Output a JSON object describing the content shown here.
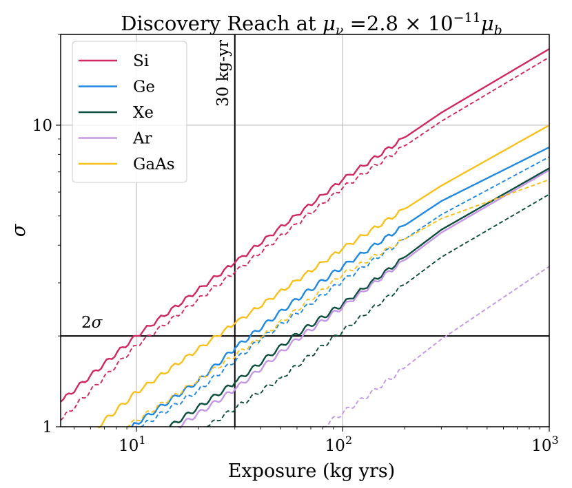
{
  "chart_data": {
    "type": "line",
    "title": "Discovery Reach at μ_ν =2.8 × 10^-11 μ_b",
    "title_parts": {
      "prefix": "Discovery Reach at ",
      "mu": "μ",
      "nu": "ν",
      "eq": " =2.8 × 10",
      "exp": "−11",
      "mu2": "μ",
      "b": "b"
    },
    "xlabel": "Exposure (kg yrs)",
    "ylabel": "σ",
    "xscale": "log",
    "yscale": "log",
    "xlim": [
      4.3,
      1000
    ],
    "ylim": [
      1,
      20
    ],
    "grid": true,
    "legend_position": "top-left",
    "x_ticks": [
      {
        "base": "10",
        "exp": "1",
        "value": 10
      },
      {
        "base": "10",
        "exp": "2",
        "value": 100
      },
      {
        "base": "10",
        "exp": "3",
        "value": 1000
      }
    ],
    "y_ticks": [
      {
        "label": "1",
        "value": 1
      },
      {
        "label": "10",
        "value": 10
      }
    ],
    "annotations": [
      {
        "label": "2σ",
        "kind": "hline",
        "value": 2
      },
      {
        "label": "30 kg-yr",
        "kind": "vline",
        "value": 30
      }
    ],
    "series": [
      {
        "name": "Si",
        "color": "#d0275f",
        "style": "solid",
        "points": [
          [
            4.3,
            1.21
          ],
          [
            10,
            2.0
          ],
          [
            30,
            3.5
          ],
          [
            100,
            6.6
          ],
          [
            300,
            11.0
          ],
          [
            1000,
            17.9
          ]
        ]
      },
      {
        "name": "Si",
        "color": "#d0275f",
        "style": "dashed",
        "in_legend": false,
        "points": [
          [
            4.3,
            1.05
          ],
          [
            10,
            1.86
          ],
          [
            30,
            3.25
          ],
          [
            100,
            6.2
          ],
          [
            300,
            10.3
          ],
          [
            1000,
            16.8
          ]
        ]
      },
      {
        "name": "Ge",
        "color": "#1f88e0",
        "style": "solid",
        "points": [
          [
            9.5,
            1.0
          ],
          [
            20,
            1.42
          ],
          [
            30,
            1.82
          ],
          [
            60,
            2.65
          ],
          [
            100,
            3.4
          ],
          [
            300,
            5.6
          ],
          [
            1000,
            8.45
          ]
        ]
      },
      {
        "name": "Ge",
        "color": "#1f88e0",
        "style": "dashed",
        "in_legend": false,
        "points": [
          [
            10.5,
            1.0
          ],
          [
            20,
            1.32
          ],
          [
            40,
            1.95
          ],
          [
            100,
            3.05
          ],
          [
            300,
            5.05
          ],
          [
            1000,
            7.85
          ]
        ]
      },
      {
        "name": "Xe",
        "color": "#0c4d3d",
        "style": "solid",
        "points": [
          [
            14.5,
            1.0
          ],
          [
            30,
            1.4
          ],
          [
            60,
            2.03
          ],
          [
            100,
            2.55
          ],
          [
            300,
            4.5
          ],
          [
            1000,
            7.2
          ]
        ]
      },
      {
        "name": "Xe",
        "color": "#0c4d3d",
        "style": "dashed",
        "in_legend": false,
        "points": [
          [
            22,
            1.0
          ],
          [
            50,
            1.45
          ],
          [
            100,
            2.08
          ],
          [
            300,
            3.65
          ],
          [
            1000,
            5.9
          ]
        ]
      },
      {
        "name": "Ar",
        "color": "#c497e6",
        "style": "solid",
        "points": [
          [
            16,
            1.0
          ],
          [
            30,
            1.33
          ],
          [
            60,
            1.95
          ],
          [
            100,
            2.5
          ],
          [
            300,
            4.4
          ],
          [
            1000,
            7.1
          ]
        ]
      },
      {
        "name": "Ar",
        "color": "#c497e6",
        "style": "dashed",
        "in_legend": false,
        "points": [
          [
            80,
            1.0
          ],
          [
            150,
            1.35
          ],
          [
            300,
            1.95
          ],
          [
            1000,
            3.4
          ]
        ]
      },
      {
        "name": "GaAs",
        "color": "#f8c01a",
        "style": "solid",
        "points": [
          [
            6.5,
            1.0
          ],
          [
            10,
            1.3
          ],
          [
            30,
            2.2
          ],
          [
            100,
            3.9
          ],
          [
            300,
            6.3
          ],
          [
            1000,
            10.0
          ]
        ]
      },
      {
        "name": "GaAs",
        "color": "#f8c01a",
        "style": "dashed",
        "in_legend": false,
        "points": [
          [
            9,
            1.0
          ],
          [
            20,
            1.43
          ],
          [
            40,
            1.97
          ],
          [
            100,
            3.2
          ],
          [
            300,
            4.9
          ],
          [
            1000,
            6.6
          ]
        ]
      }
    ]
  }
}
